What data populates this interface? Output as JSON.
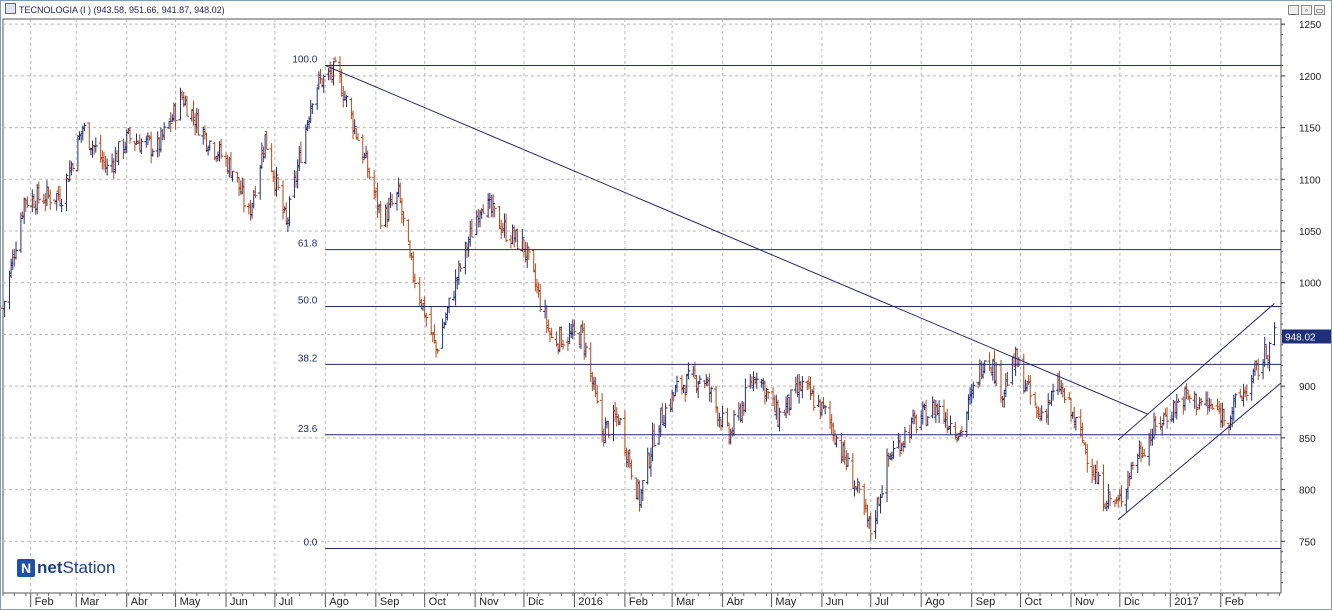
{
  "window": {
    "title": "TECNOLOGIA (I ) (943.58, 951.66, 941.87, 948.02)",
    "minimize_glyph": "_",
    "maximize_glyph": "▭",
    "restore_glyph": "▫"
  },
  "brand": {
    "mark": "N",
    "name_bold": "net",
    "name_rest": "Station"
  },
  "colors": {
    "up": "#1f2f7a",
    "down": "#b5481b",
    "line": "#232a6e",
    "grid": "#b9b9b9",
    "label_bg": "#1f2f7a"
  },
  "chart_data": {
    "type": "ohlc",
    "title": "TECNOLOGIA (I ) (943.58, 951.66, 941.87, 948.02)",
    "last_close": 948.02,
    "last_label": "948.02",
    "ylim": [
      700,
      1255
    ],
    "y_ticks": [
      750,
      800,
      850,
      900,
      950,
      1000,
      1050,
      1100,
      1150,
      1200,
      1250
    ],
    "y_tick_labels": [
      "750",
      "800",
      "850",
      "900",
      "",
      "1000",
      "1050",
      "1100",
      "1150",
      "1200",
      "1250"
    ],
    "x_axis": {
      "start": "2015-01-15",
      "end": "2017-03-10",
      "labels": [
        {
          "date": "2015-02-01",
          "text": "Feb"
        },
        {
          "date": "2015-03-01",
          "text": "Mar"
        },
        {
          "date": "2015-04-01",
          "text": "Abr"
        },
        {
          "date": "2015-05-01",
          "text": "May"
        },
        {
          "date": "2015-06-01",
          "text": "Jun"
        },
        {
          "date": "2015-07-01",
          "text": "Jul"
        },
        {
          "date": "2015-08-01",
          "text": "Ago"
        },
        {
          "date": "2015-09-01",
          "text": "Sep"
        },
        {
          "date": "2015-10-01",
          "text": "Oct"
        },
        {
          "date": "2015-11-01",
          "text": "Nov"
        },
        {
          "date": "2015-12-01",
          "text": "Dic"
        },
        {
          "date": "2016-01-01",
          "text": "2016"
        },
        {
          "date": "2016-02-01",
          "text": "Feb"
        },
        {
          "date": "2016-03-01",
          "text": "Mar"
        },
        {
          "date": "2016-04-01",
          "text": "Abr"
        },
        {
          "date": "2016-05-01",
          "text": "May"
        },
        {
          "date": "2016-06-01",
          "text": "Jun"
        },
        {
          "date": "2016-07-01",
          "text": "Jul"
        },
        {
          "date": "2016-08-01",
          "text": "Ago"
        },
        {
          "date": "2016-09-01",
          "text": "Sep"
        },
        {
          "date": "2016-10-01",
          "text": "Oct"
        },
        {
          "date": "2016-11-01",
          "text": "Nov"
        },
        {
          "date": "2016-12-01",
          "text": "Dic"
        },
        {
          "date": "2017-01-01",
          "text": "2017"
        },
        {
          "date": "2017-02-01",
          "text": "Feb"
        }
      ]
    },
    "price_path": [
      {
        "date": "2015-01-15",
        "close": 975
      },
      {
        "date": "2015-01-28",
        "close": 1080
      },
      {
        "date": "2015-02-20",
        "close": 1085
      },
      {
        "date": "2015-03-05",
        "close": 1150
      },
      {
        "date": "2015-03-20",
        "close": 1110
      },
      {
        "date": "2015-04-02",
        "close": 1140
      },
      {
        "date": "2015-04-20",
        "close": 1130
      },
      {
        "date": "2015-05-05",
        "close": 1180
      },
      {
        "date": "2015-05-20",
        "close": 1140
      },
      {
        "date": "2015-06-05",
        "close": 1110
      },
      {
        "date": "2015-06-15",
        "close": 1065
      },
      {
        "date": "2015-06-25",
        "close": 1140
      },
      {
        "date": "2015-07-08",
        "close": 1055
      },
      {
        "date": "2015-07-25",
        "close": 1190
      },
      {
        "date": "2015-08-08",
        "close": 1205
      },
      {
        "date": "2015-08-25",
        "close": 1120
      },
      {
        "date": "2015-09-05",
        "close": 1060
      },
      {
        "date": "2015-09-15",
        "close": 1085
      },
      {
        "date": "2015-09-22",
        "close": 1020
      },
      {
        "date": "2015-10-08",
        "close": 935
      },
      {
        "date": "2015-10-22",
        "close": 1010
      },
      {
        "date": "2015-11-05",
        "close": 1080
      },
      {
        "date": "2015-11-20",
        "close": 1050
      },
      {
        "date": "2015-12-01",
        "close": 1035
      },
      {
        "date": "2015-12-18",
        "close": 945
      },
      {
        "date": "2016-01-06",
        "close": 950
      },
      {
        "date": "2016-01-18",
        "close": 855
      },
      {
        "date": "2016-01-28",
        "close": 870
      },
      {
        "date": "2016-02-10",
        "close": 790
      },
      {
        "date": "2016-02-20",
        "close": 860
      },
      {
        "date": "2016-03-05",
        "close": 900
      },
      {
        "date": "2016-03-20",
        "close": 910
      },
      {
        "date": "2016-04-05",
        "close": 850
      },
      {
        "date": "2016-04-22",
        "close": 915
      },
      {
        "date": "2016-05-05",
        "close": 870
      },
      {
        "date": "2016-05-20",
        "close": 900
      },
      {
        "date": "2016-06-05",
        "close": 870
      },
      {
        "date": "2016-06-20",
        "close": 810
      },
      {
        "date": "2016-07-01",
        "close": 760
      },
      {
        "date": "2016-07-12",
        "close": 830
      },
      {
        "date": "2016-07-25",
        "close": 860
      },
      {
        "date": "2016-08-10",
        "close": 880
      },
      {
        "date": "2016-08-25",
        "close": 855
      },
      {
        "date": "2016-09-10",
        "close": 935
      },
      {
        "date": "2016-09-20",
        "close": 895
      },
      {
        "date": "2016-09-28",
        "close": 925
      },
      {
        "date": "2016-10-12",
        "close": 870
      },
      {
        "date": "2016-10-25",
        "close": 900
      },
      {
        "date": "2016-11-10",
        "close": 840
      },
      {
        "date": "2016-11-20",
        "close": 795
      },
      {
        "date": "2016-11-30",
        "close": 785
      },
      {
        "date": "2016-12-10",
        "close": 830
      },
      {
        "date": "2016-12-28",
        "close": 870
      },
      {
        "date": "2017-01-10",
        "close": 890
      },
      {
        "date": "2017-01-25",
        "close": 880
      },
      {
        "date": "2017-02-05",
        "close": 870
      },
      {
        "date": "2017-02-20",
        "close": 905
      },
      {
        "date": "2017-03-06",
        "close": 948
      }
    ],
    "fibonacci": {
      "high": 1210,
      "low": 743,
      "start_date": "2015-08-01",
      "end_date": "2017-03-10",
      "levels": [
        {
          "ratio": "100.0",
          "price": 1210
        },
        {
          "ratio": "61.8",
          "price": 1032
        },
        {
          "ratio": "50.0",
          "price": 977
        },
        {
          "ratio": "38.2",
          "price": 921
        },
        {
          "ratio": "23.6",
          "price": 853
        },
        {
          "ratio": "0.0",
          "price": 743
        }
      ]
    },
    "trendlines": [
      {
        "name": "downtrend",
        "from": {
          "date": "2015-08-01",
          "price": 1210
        },
        "to": {
          "date": "2016-12-18",
          "price": 873
        }
      },
      {
        "name": "channel-upper",
        "from": {
          "date": "2016-11-30",
          "price": 848
        },
        "to": {
          "date": "2017-03-06",
          "price": 980
        }
      },
      {
        "name": "channel-lower",
        "from": {
          "date": "2016-11-30",
          "price": 771
        },
        "to": {
          "date": "2017-03-10",
          "price": 903
        }
      }
    ]
  }
}
